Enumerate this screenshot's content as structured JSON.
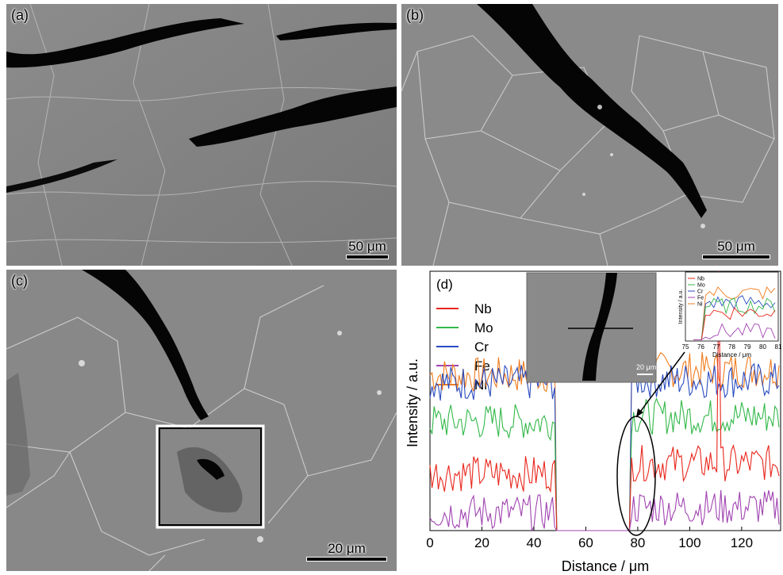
{
  "panels": {
    "a": {
      "label": "(a)",
      "scale": "50 μm"
    },
    "b": {
      "label": "(b)",
      "scale": "50 μm"
    },
    "c": {
      "label": "(c)",
      "scale": "20 μm"
    },
    "d": {
      "label": "(d)"
    }
  },
  "colors": {
    "Nb": "#e8261c",
    "Mo": "#33b84a",
    "Cr": "#2a4cc0",
    "Fe": "#a044b0",
    "Ni": "#f07c1e"
  },
  "chart_data": {
    "type": "line",
    "xlabel": "Distance / μm",
    "ylabel": "Intensity / a.u.",
    "x_ticks": [
      0,
      20,
      40,
      60,
      80,
      100,
      120
    ],
    "xlim": [
      0,
      135
    ],
    "legend": [
      "Nb",
      "Mo",
      "Cr",
      "Fe",
      "Ni"
    ],
    "series": [
      {
        "name": "Nb",
        "base_left": 0.22,
        "base_right": 0.26,
        "spike": {
          "x": 111,
          "y": 1.0
        }
      },
      {
        "name": "Mo",
        "base_left": 0.42,
        "base_right": 0.44
      },
      {
        "name": "Cr",
        "base_left": 0.57,
        "base_right": 0.58
      },
      {
        "name": "Fe",
        "base_left": 0.07,
        "base_right": 0.09
      },
      {
        "name": "Ni",
        "base_left": 0.6,
        "base_right": 0.62
      }
    ],
    "gap": [
      48,
      77
    ],
    "inset_image_scale": "20 μm",
    "inset_chart": {
      "xlabel": "Distance / μm",
      "ylabel": "Intensity / a.u.",
      "x_ticks": [
        "75",
        "76",
        "77",
        "78",
        "79",
        "80",
        "81"
      ],
      "legend": [
        "Nb",
        "Mo",
        "Cr",
        "Fe",
        "Ni"
      ]
    }
  }
}
